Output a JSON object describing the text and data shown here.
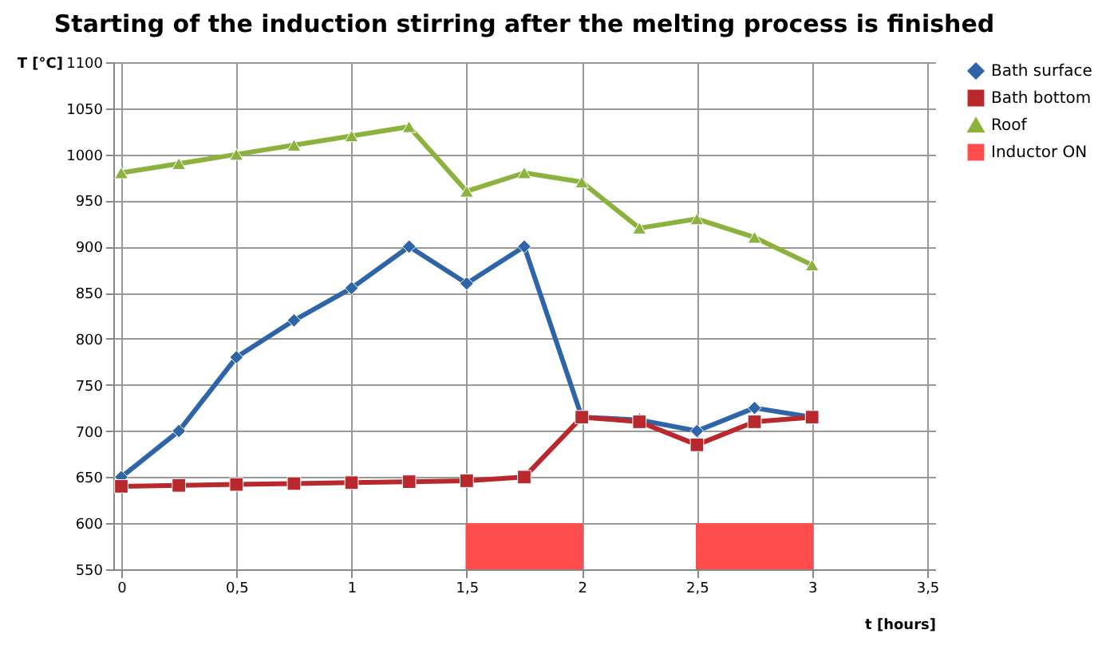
{
  "chart_data": {
    "type": "line",
    "title": "Starting of the induction stirring after the melting process is finished",
    "xlabel": "t [hours]",
    "ylabel": "T [°C]",
    "x": [
      0,
      0.25,
      0.5,
      0.75,
      1,
      1.25,
      1.5,
      1.75,
      2,
      2.25,
      2.5,
      2.75,
      3
    ],
    "series": [
      {
        "name": "Bath surface",
        "color": "#2e64a8",
        "marker": "diamond",
        "values": [
          650,
          700,
          780,
          820,
          855,
          900,
          860,
          900,
          715,
          712,
          700,
          725,
          715
        ]
      },
      {
        "name": "Bath bottom",
        "color": "#b8282c",
        "marker": "square",
        "values": [
          640,
          641,
          642,
          643,
          644,
          645,
          646,
          650,
          715,
          710,
          685,
          710,
          715
        ]
      },
      {
        "name": "Roof",
        "color": "#8ab23c",
        "marker": "triangle",
        "values": [
          980,
          990,
          1000,
          1010,
          1020,
          1030,
          960,
          980,
          970,
          920,
          930,
          910,
          880
        ]
      },
      {
        "name": "Inductor ON",
        "type": "bar",
        "color": "#ff4d4d",
        "x": [
          1.75,
          2.75
        ],
        "base": [
          550,
          550
        ],
        "values": [
          50,
          50
        ]
      }
    ],
    "xlim": [
      0,
      3.5
    ],
    "xticks": [
      0,
      {
        "value": 0.5,
        "label": "0,5"
      },
      1,
      {
        "value": 1.5,
        "label": "1,5"
      },
      2,
      {
        "value": 2.5,
        "label": "2,5"
      },
      3,
      {
        "value": 3.5,
        "label": "3,5"
      }
    ],
    "ylim": [
      550,
      1100
    ],
    "yticks": [
      550,
      600,
      650,
      700,
      750,
      800,
      850,
      900,
      950,
      1000,
      1050,
      1100
    ],
    "grid": true,
    "legend": "right",
    "line_style": "solid"
  }
}
